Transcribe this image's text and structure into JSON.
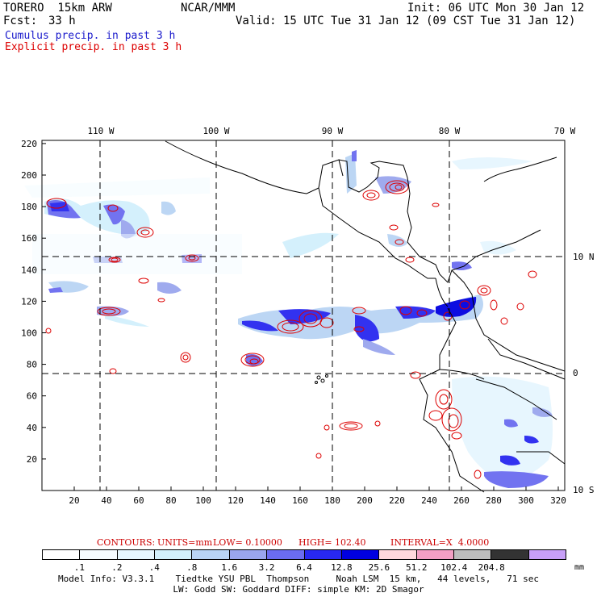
{
  "header": {
    "model": "TORERO  15km ARW",
    "org": "NCAR/MMM",
    "init": "Init: 06 UTC Mon 30 Jan 12",
    "fcst_label": "Fcst:",
    "fcst_value": "33 h",
    "valid": "Valid: 15 UTC Tue 31 Jan 12 (09 CST Tue 31 Jan 12)",
    "cumulus": "Cumulus precip. in past 3 h",
    "explicit": "Explicit precip. in past 3 h",
    "cumulus_color": "#1a1acc",
    "explicit_color": "#dd0000"
  },
  "map": {
    "x_ticks": [
      "20",
      "40",
      "60",
      "80",
      "100",
      "120",
      "140",
      "160",
      "180",
      "200",
      "220",
      "240",
      "260",
      "280",
      "300",
      "320"
    ],
    "y_ticks": [
      "20",
      "40",
      "60",
      "80",
      "100",
      "120",
      "140",
      "160",
      "180",
      "200",
      "220"
    ],
    "lon_labels": [
      "110 W",
      "100 W",
      "90 W",
      "80 W",
      "70 W"
    ],
    "lat_labels": [
      "10 N",
      "0",
      "10 S"
    ]
  },
  "contours": {
    "label": "CONTOURS:",
    "units": "UNITS=mm",
    "low": "LOW= 0.10000",
    "high": "HIGH= 102.40",
    "interval": "INTERVAL=X  4.0000"
  },
  "colorbar": {
    "colors": [
      "#ffffff",
      "#f4fbff",
      "#e6f6fe",
      "#d2f0fc",
      "#b9d4f4",
      "#9aa6ee",
      "#6b6cf0",
      "#2828f0",
      "#0000e0",
      "#ffd8dc",
      "#f3a0c4",
      "#bdbdbd",
      "#333333",
      "#c8a0f8"
    ],
    "labels": [
      ".1",
      ".2",
      ".4",
      ".8",
      "1.6",
      "3.2",
      "6.4",
      "12.8",
      "25.6",
      "51.2",
      "102.4",
      "204.8"
    ],
    "unit": "mm"
  },
  "model_info": {
    "line1": "Model Info: V3.3.1    Tiedtke YSU PBL  Thompson     Noah LSM  15 km,   44 levels,   71 sec",
    "line2": "LW: Godd SW: Goddard DIFF: simple KM: 2D Smagor"
  }
}
